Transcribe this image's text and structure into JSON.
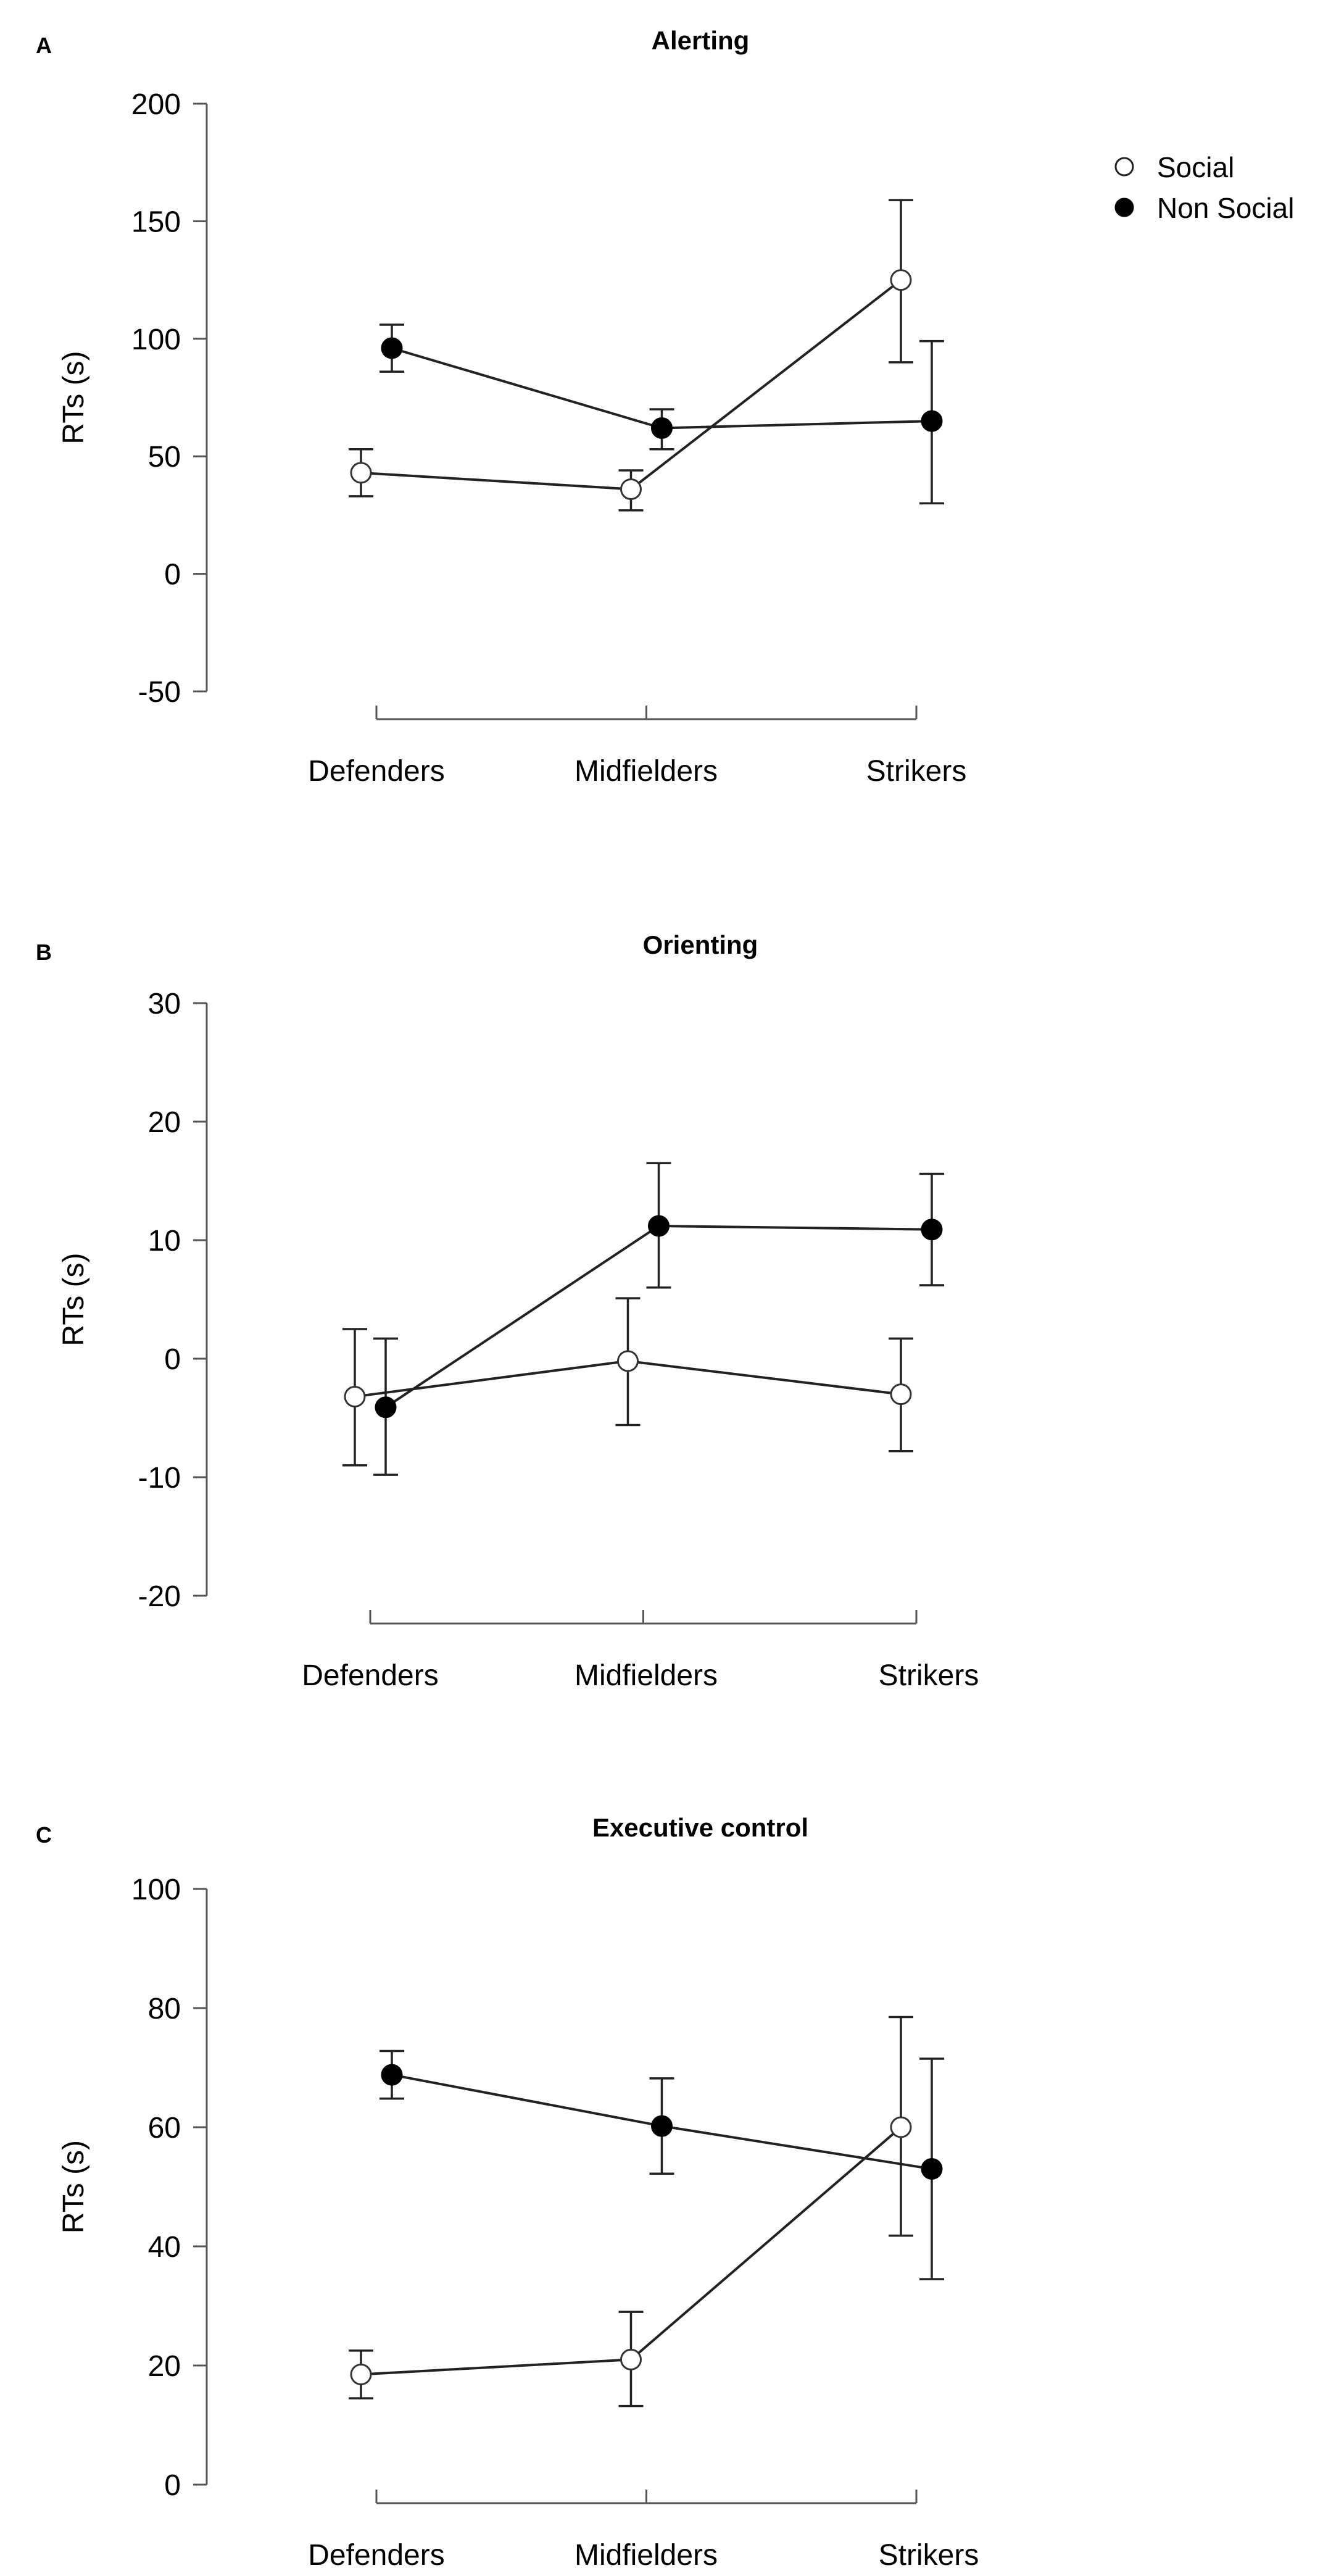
{
  "legend": {
    "items": [
      {
        "label": "Social",
        "marker": "open-circle"
      },
      {
        "label": "Non Social",
        "marker": "filled-circle"
      }
    ]
  },
  "colors": {
    "line": "#222222",
    "axis": "#555555",
    "open_fill": "#ffffff",
    "filled": "#000000"
  },
  "chart_data": [
    {
      "type": "line",
      "panel": "A",
      "title": "Alerting",
      "xlabel": "",
      "ylabel": "RTs (s)",
      "categories": [
        "Defenders",
        "Midfielders",
        "Strikers"
      ],
      "ylim": [
        -50,
        200
      ],
      "yticks": [
        -50,
        0,
        50,
        100,
        150,
        200
      ],
      "series": [
        {
          "name": "Social",
          "marker": "open",
          "values": [
            43,
            36,
            125
          ],
          "err_low": [
            33,
            27,
            90
          ],
          "err_high": [
            53,
            44,
            159
          ]
        },
        {
          "name": "Non Social",
          "marker": "filled",
          "values": [
            96,
            62,
            65
          ],
          "err_low": [
            86,
            53,
            30
          ],
          "err_high": [
            106,
            70,
            99
          ]
        }
      ]
    },
    {
      "type": "line",
      "panel": "B",
      "title": "Orienting",
      "xlabel": "",
      "ylabel": "RTs (s)",
      "categories": [
        "Defenders",
        "Midfielders",
        "Strikers"
      ],
      "ylim": [
        -20,
        30
      ],
      "yticks": [
        -20,
        -10,
        0,
        10,
        20,
        30
      ],
      "series": [
        {
          "name": "Social",
          "marker": "open",
          "values": [
            -3.2,
            -0.2,
            -3.0
          ],
          "err_low": [
            -9.0,
            -5.6,
            -7.8
          ],
          "err_high": [
            2.5,
            5.1,
            1.7
          ]
        },
        {
          "name": "Non Social",
          "marker": "filled",
          "values": [
            -4.1,
            11.2,
            10.9
          ],
          "err_low": [
            -9.8,
            6.0,
            6.2
          ],
          "err_high": [
            1.7,
            16.5,
            15.6
          ]
        }
      ]
    },
    {
      "type": "line",
      "panel": "C",
      "title": "Executive control",
      "xlabel": "",
      "ylabel": "RTs (s)",
      "categories": [
        "Defenders",
        "Midfielders",
        "Strikers"
      ],
      "ylim": [
        0,
        100
      ],
      "yticks": [
        0,
        20,
        40,
        60,
        80,
        100
      ],
      "series": [
        {
          "name": "Social",
          "marker": "open",
          "values": [
            18.5,
            21.0,
            60.0
          ],
          "err_low": [
            14.5,
            13.2,
            41.8
          ],
          "err_high": [
            22.5,
            29.0,
            78.5
          ]
        },
        {
          "name": "Non Social",
          "marker": "filled",
          "values": [
            68.8,
            60.2,
            53.0
          ],
          "err_low": [
            64.8,
            52.2,
            34.5
          ],
          "err_high": [
            72.8,
            68.2,
            71.5
          ]
        }
      ]
    }
  ]
}
